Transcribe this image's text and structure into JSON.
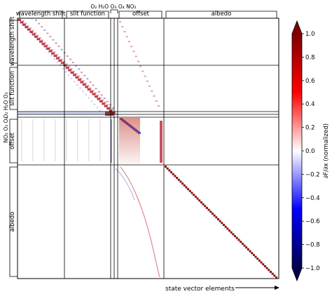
{
  "chart_data": {
    "type": "heatmap",
    "title": "",
    "xlabel": "state vector elements",
    "ylabel": "",
    "colorbar": {
      "label": "∂F/∂x (normalized)",
      "ticks": [
        1.0,
        0.8,
        0.6,
        0.4,
        0.2,
        0.0,
        -0.2,
        -0.4,
        -0.6,
        -0.8,
        -1.0
      ],
      "tick_labels": [
        "1.0",
        "0.8",
        "0.6",
        "0.4",
        "0.2",
        "0.0",
        "−0.2",
        "−0.4",
        "−0.6",
        "−0.8",
        "−1.0"
      ],
      "range": [
        -1.0,
        1.0
      ],
      "colormap": "seismic",
      "extend": "both"
    },
    "top_blocks": [
      "wavelength shift",
      "slit function",
      "O2",
      "H2O",
      "O3",
      "O4",
      "NO2",
      "offset",
      "albedo"
    ],
    "left_blocks": [
      "wavelength shift",
      "slit function",
      "O2",
      "H2O",
      "O3",
      "NO2",
      "O3",
      "O4",
      "offset",
      "albedo"
    ],
    "grid": true,
    "colors": {
      "positive": "#b2182b",
      "negative": "#2040c0",
      "neutral": "#ffffff",
      "diagonal": "#8b1010"
    }
  },
  "labels": {
    "top_wavelength_shift": "wavelength shift",
    "top_slit_function": "slit function",
    "top_gases": "O₂ H₂O O₃ O₄ NO₂",
    "top_offset": "offset",
    "top_albedo": "albedo",
    "left_wavelength_shift": "wavelength shift",
    "left_slit_function": "slit function",
    "left_gases_upper": "O₂ H₂O O₃",
    "left_gases_lower": "NO₂ O₃ O₄",
    "left_offset": "offset",
    "left_albedo": "albedo",
    "xlabel": "state vector elements",
    "colorbar_label": "∂F/∂x (normalized)"
  }
}
